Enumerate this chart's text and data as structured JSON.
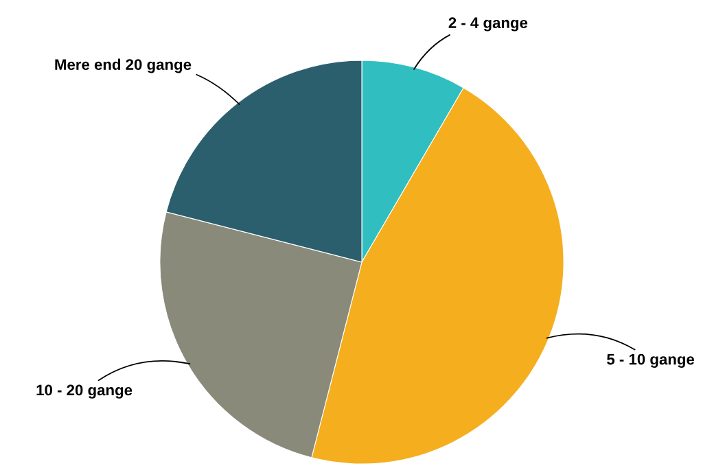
{
  "chart_data": {
    "type": "pie",
    "categories": [
      "2 - 4 gange",
      "5 - 10 gange",
      "10 - 20 gange",
      "Mere end 20 gange"
    ],
    "values": [
      8.4,
      45.6,
      25.0,
      21.0
    ],
    "colors": [
      "#31bec1",
      "#f5ae1e",
      "#898a79",
      "#2b5f6d"
    ]
  }
}
